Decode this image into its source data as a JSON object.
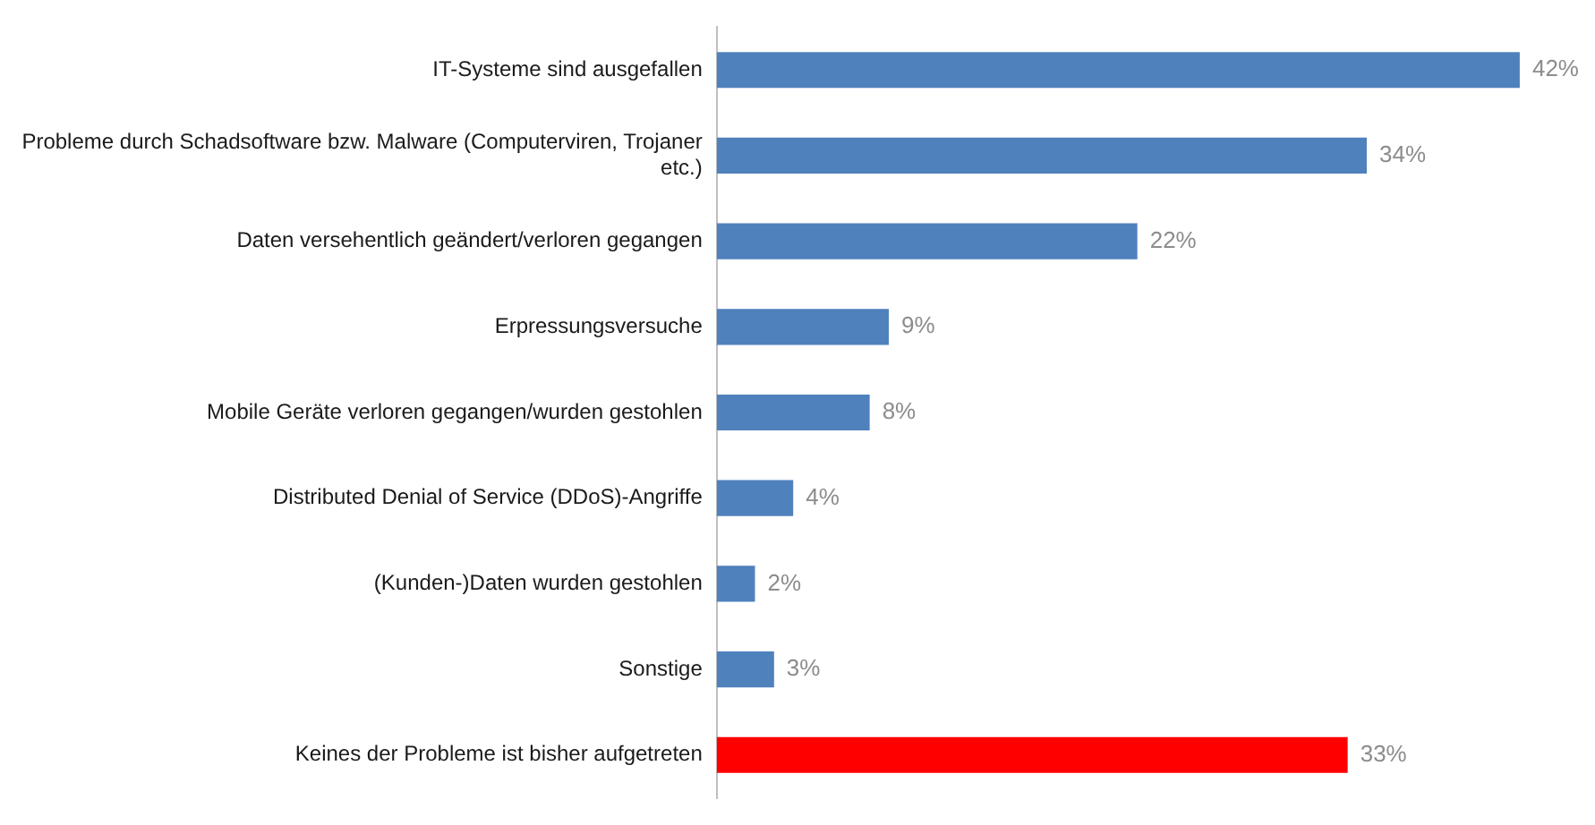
{
  "chart_data": {
    "type": "bar",
    "orientation": "horizontal",
    "categories": [
      "IT-Systeme sind ausgefallen",
      "Probleme durch Schadsoftware bzw. Malware (Computerviren, Trojaner etc.)",
      "Daten versehentlich geändert/verloren gegangen",
      "Erpressungsversuche",
      "Mobile Geräte verloren gegangen/wurden gestohlen",
      "Distributed Denial of Service (DDoS)-Angriffe",
      "(Kunden-)Daten wurden gestohlen",
      "Sonstige",
      "Keines der Probleme ist bisher aufgetreten"
    ],
    "values": [
      42,
      34,
      22,
      9,
      8,
      4,
      2,
      3,
      33
    ],
    "colors": [
      "#4f81bd",
      "#4f81bd",
      "#4f81bd",
      "#4f81bd",
      "#4f81bd",
      "#4f81bd",
      "#4f81bd",
      "#4f81bd",
      "#ff0000"
    ],
    "value_labels": [
      "42%",
      "34%",
      "22%",
      "9%",
      "8%",
      "4%",
      "2%",
      "3%",
      "33%"
    ],
    "legend": false
  }
}
